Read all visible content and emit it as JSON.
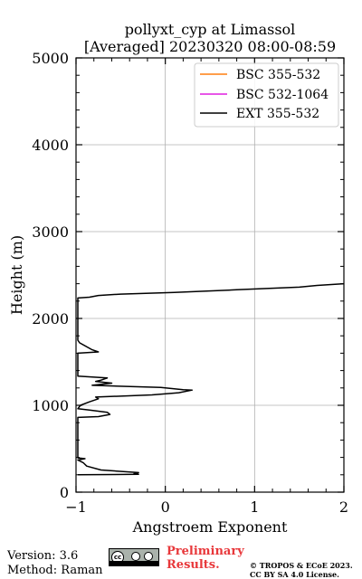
{
  "chart_data": {
    "type": "line",
    "title": [
      "pollyxt_cyp at Limassol",
      "[Averaged] 20230320 08:00-08:59"
    ],
    "xlabel": "Angstroem Exponent",
    "ylabel": "Height (m)",
    "xlim": [
      -1,
      2
    ],
    "ylim": [
      0,
      5000
    ],
    "xticks": [
      -1,
      0,
      1,
      2
    ],
    "yticks": [
      0,
      1000,
      2000,
      3000,
      4000,
      5000
    ],
    "grid": true,
    "legend_position": "top-right",
    "series": [
      {
        "name": "BSC 355-532",
        "color": "#ff7f0e",
        "points": []
      },
      {
        "name": "BSC 532-1064",
        "color": "#e01fe0",
        "points": []
      },
      {
        "name": "EXT 355-532",
        "color": "#000000",
        "points": [
          [
            -0.98,
            200
          ],
          [
            -0.3,
            205
          ],
          [
            -0.35,
            215
          ],
          [
            -0.3,
            225
          ],
          [
            -0.72,
            255
          ],
          [
            -0.88,
            300
          ],
          [
            -0.92,
            340
          ],
          [
            -0.98,
            370
          ],
          [
            -0.9,
            385
          ],
          [
            -0.98,
            395
          ],
          [
            -0.98,
            860
          ],
          [
            -0.75,
            870
          ],
          [
            -0.62,
            895
          ],
          [
            -0.65,
            920
          ],
          [
            -0.85,
            945
          ],
          [
            -0.98,
            960
          ],
          [
            -0.95,
            1000
          ],
          [
            -0.85,
            1040
          ],
          [
            -0.75,
            1075
          ],
          [
            -0.78,
            1095
          ],
          [
            -0.15,
            1120
          ],
          [
            0.15,
            1145
          ],
          [
            0.3,
            1175
          ],
          [
            0.2,
            1180
          ],
          [
            -0.05,
            1205
          ],
          [
            -0.82,
            1230
          ],
          [
            -0.6,
            1255
          ],
          [
            -0.78,
            1275
          ],
          [
            -0.72,
            1290
          ],
          [
            -0.65,
            1315
          ],
          [
            -0.98,
            1335
          ],
          [
            -0.98,
            1600
          ],
          [
            -0.75,
            1615
          ],
          [
            -0.82,
            1640
          ],
          [
            -0.96,
            1720
          ],
          [
            -0.98,
            1750
          ],
          [
            -0.98,
            2235
          ],
          [
            -0.85,
            2245
          ],
          [
            -0.75,
            2265
          ],
          [
            -0.5,
            2280
          ],
          [
            0.1,
            2300
          ],
          [
            0.8,
            2330
          ],
          [
            1.5,
            2360
          ],
          [
            1.7,
            2380
          ],
          [
            2.0,
            2400
          ]
        ]
      }
    ]
  },
  "footer": {
    "version": "Version: 3.6",
    "method": "Method: Raman",
    "license_badge": "cc",
    "prelim_line1": "Preliminary",
    "prelim_line2": "Results.",
    "copyright_line1": "© TROPOS & ECoE 2023.",
    "copyright_line2": "CC BY SA 4.0 License."
  }
}
